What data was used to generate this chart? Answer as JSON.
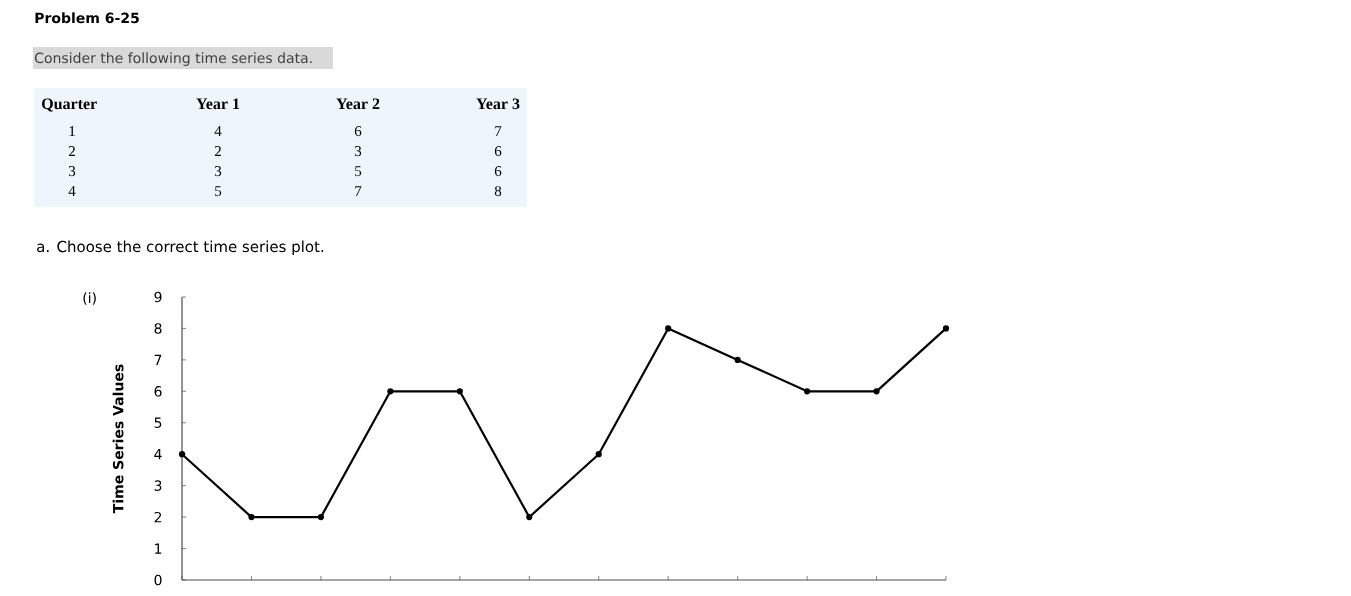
{
  "chart_data": {
    "type": "line",
    "title": "Problem 6-25",
    "subtitle": "Consider the following time series data.",
    "ylabel": "Time Series Values",
    "categories": [
      null,
      null,
      null,
      null,
      null,
      null,
      null,
      null,
      null,
      null,
      null,
      null
    ],
    "series": [
      {
        "color": "#000000",
        "values": [
          4,
          2,
          2,
          6,
          6,
          2,
          4,
          8,
          7,
          6,
          6,
          8
        ]
      }
    ],
    "ylim": [
      0,
      9
    ],
    "yticks": [
      0,
      1,
      2,
      3,
      4,
      5,
      6,
      7,
      8,
      9
    ],
    "marker": "circle",
    "line_style": "solid",
    "annotations": [
      "Quarter",
      "Year 1",
      "Year 2",
      "Year 3",
      "1",
      "4",
      "6",
      "7",
      "2",
      "2",
      "3",
      "6",
      "3",
      "3",
      "5",
      "6",
      "4",
      "5",
      "7",
      "8",
      "a. Choose the correct time series plot.",
      "(i)"
    ]
  }
}
